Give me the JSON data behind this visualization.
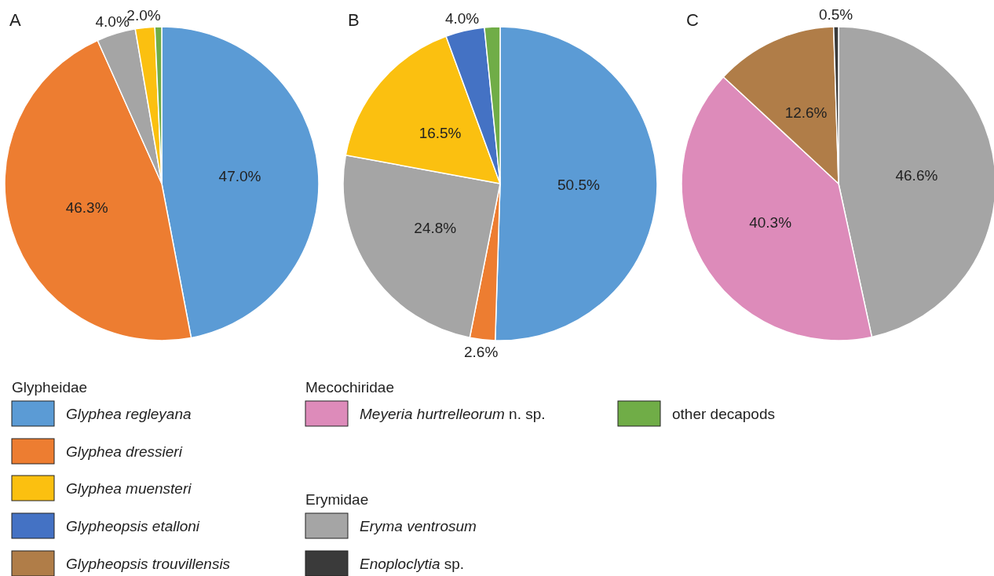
{
  "chart_data": [
    {
      "type": "pie",
      "title": "A",
      "categories": [
        "Glyphea regleyana",
        "Glyphea dressieri",
        "Eryma ventrosum",
        "Glyphea muensteri",
        "other decapods"
      ],
      "values": [
        47.0,
        46.3,
        4.0,
        2.0,
        0.7
      ],
      "value_labels": [
        "47.0%",
        "46.3%",
        "4.0%",
        "2.0%",
        null
      ],
      "colors": [
        "#5b9bd5",
        "#ed7d31",
        "#a5a5a5",
        "#fbc010",
        "#70ad47"
      ],
      "legend": "bottom",
      "annotations": [
        "Glypheidae",
        "Mecochiridae",
        "Erymidae"
      ]
    },
    {
      "type": "pie",
      "title": "B",
      "categories": [
        null,
        null,
        null,
        null,
        "Glypheopsis etalloni",
        null
      ],
      "values": [
        50.5,
        2.6,
        24.8,
        16.5,
        4.0,
        1.6
      ],
      "value_labels": [
        "50.5%",
        "2.6%",
        "24.8%",
        "16.5%",
        "4.0%",
        null
      ],
      "colors": [
        "#5b9bd5",
        "#ed7d31",
        "#a5a5a5",
        "#fbc010",
        "#4472c4",
        "#70ad47"
      ],
      "legend": "bottom"
    },
    {
      "type": "pie",
      "title": "C",
      "categories": [
        null,
        "Meyeria hurtrelleorum n. sp.",
        "Glypheopsis trouvillensis",
        "Enoploclytia sp."
      ],
      "values": [
        46.6,
        40.3,
        12.6,
        0.5
      ],
      "value_labels": [
        "46.6%",
        "40.3%",
        "12.6%",
        "0.5%"
      ],
      "colors": [
        "#a5a5a5",
        "#dd8bba",
        "#b07d48",
        "#3a3a3a"
      ],
      "legend": "bottom"
    }
  ]
}
